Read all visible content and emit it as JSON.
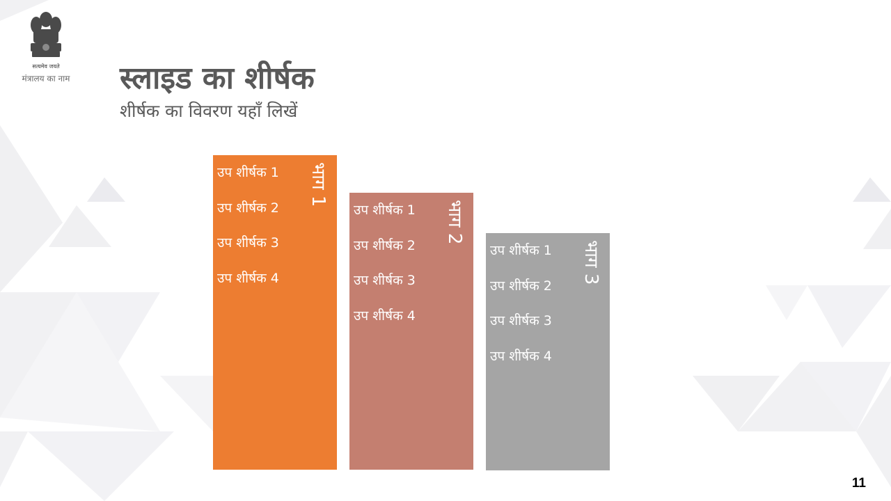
{
  "header": {
    "ministry_name": "मंत्रालय का नाम",
    "emblem_motto": "सत्यमेव जयते"
  },
  "slide": {
    "title": "स्लाइड का शीर्षक",
    "subtitle": "शीर्षक का विवरण यहाँ लिखें",
    "page_number": "11"
  },
  "colors": {
    "orange": "#ED7D31",
    "rose": "#C47F70",
    "gray": "#A5A5A5",
    "title_text": "#595959",
    "background_triangles": "#E6E6EA"
  },
  "columns": [
    {
      "label": "भाग 1",
      "items": [
        "उप शीर्षक 1",
        "उप शीर्षक 2",
        "उप शीर्षक 3",
        "उप शीर्षक 4"
      ]
    },
    {
      "label": "भाग 2",
      "items": [
        "उप शीर्षक 1",
        "उप शीर्षक 2",
        "उप शीर्षक 3",
        "उप शीर्षक 4"
      ]
    },
    {
      "label": "भाग 3",
      "items": [
        "उप शीर्षक 1",
        "उप शीर्षक 2",
        "उप शीर्षक 3",
        "उप शीर्षक 4"
      ]
    }
  ]
}
